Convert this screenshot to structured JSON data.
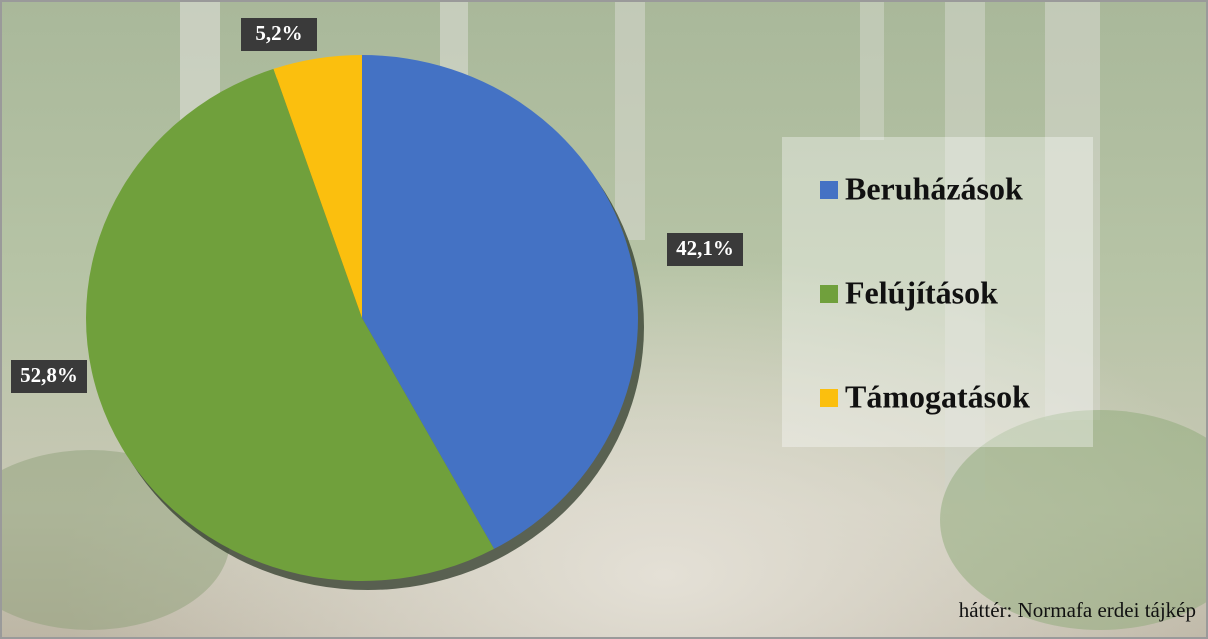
{
  "chart_data": {
    "type": "pie",
    "categories": [
      "Beruházások",
      "Felújítások",
      "Támogatások"
    ],
    "values": [
      42.1,
      52.8,
      5.2
    ],
    "value_labels": [
      "42,1%",
      "52,8%",
      "5,2%"
    ],
    "colors": [
      "#4472c4",
      "#70a03c",
      "#fbbf0e"
    ],
    "legend": "right",
    "annotation": "háttér: Normafa erdei tájkép"
  }
}
